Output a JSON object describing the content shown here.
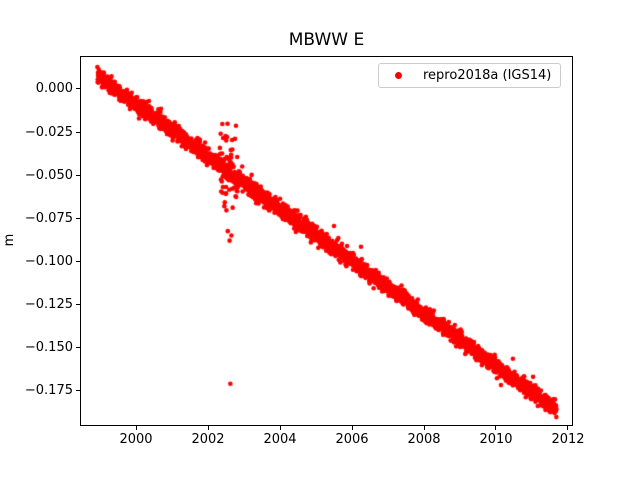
{
  "window": {
    "background": "#ffffff"
  },
  "chart_data": {
    "type": "scatter",
    "title": "MBWW E",
    "xlabel": "",
    "ylabel": "m",
    "grid": false,
    "axis_color": "#000000",
    "xlim": [
      1998.444,
      2012.139
    ],
    "ylim": [
      -0.1955,
      0.0191
    ],
    "xticks": {
      "values": [
        2000,
        2002,
        2004,
        2006,
        2008,
        2010,
        2012
      ],
      "labels": [
        "2000",
        "2002",
        "2004",
        "2006",
        "2008",
        "2010",
        "2012"
      ]
    },
    "yticks": {
      "values": [
        0.0,
        -0.025,
        -0.05,
        -0.075,
        -0.1,
        -0.125,
        -0.15,
        -0.175
      ],
      "labels": [
        "0.000",
        "−0.025",
        "−0.050",
        "−0.075",
        "−0.100",
        "−0.125",
        "−0.150",
        "−0.175"
      ]
    },
    "legend": {
      "position": "upper-right",
      "entries": [
        {
          "label": "repro2018a (IGS14)",
          "color": "#ff0000",
          "marker": "dot"
        }
      ]
    },
    "series": [
      {
        "name": "repro2018a (IGS14)",
        "color": "#ff0000",
        "marker": "dot",
        "marker_radius_px": 2.3,
        "n_points": 3300,
        "seed": 7,
        "trend": {
          "t_start": 1998.93,
          "t_end": 2011.68,
          "value_at_t_start_m": 0.0075,
          "slope_m_per_year": -0.01519
        },
        "scatter_noise_sd_m": 0.0022,
        "anomaly_window": {
          "t_start": 2002.35,
          "t_end": 2002.85,
          "fraction": 0.5,
          "extra_noise_sd_m": 0.0115
        },
        "outliers": [
          [
            2000.36,
            -0.007
          ],
          [
            2002.33,
            -0.0342
          ],
          [
            2002.42,
            -0.0285
          ],
          [
            2002.53,
            -0.0279
          ],
          [
            2002.67,
            -0.0296
          ],
          [
            2002.55,
            -0.0825
          ],
          [
            2002.6,
            -0.088
          ],
          [
            2002.65,
            -0.085
          ],
          [
            2002.62,
            -0.171
          ],
          [
            2002.95,
            -0.045
          ],
          [
            2005.5,
            -0.0795
          ],
          [
            2005.62,
            -0.0865
          ],
          [
            2006.25,
            -0.0915
          ],
          [
            2010.47,
            -0.1565
          ],
          [
            2011.03,
            -0.167
          ]
        ]
      }
    ]
  }
}
